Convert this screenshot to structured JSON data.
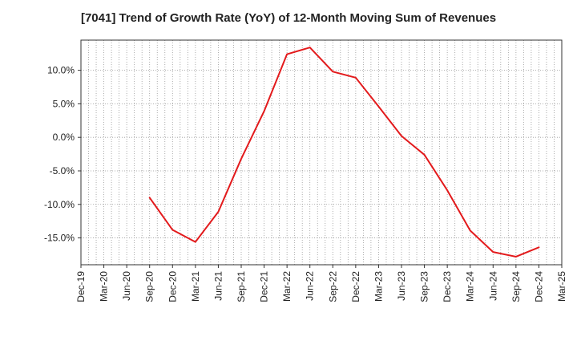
{
  "chart_data": {
    "type": "line",
    "title": "[7041]  Trend of Growth Rate (YoY) of 12-Month Moving Sum of Revenues",
    "xlabel": "",
    "ylabel": "",
    "categories": [
      "Dec-19",
      "Mar-20",
      "Jun-20",
      "Sep-20",
      "Dec-20",
      "Mar-21",
      "Jun-21",
      "Sep-21",
      "Dec-21",
      "Mar-22",
      "Jun-22",
      "Sep-22",
      "Dec-22",
      "Mar-23",
      "Jun-23",
      "Sep-23",
      "Dec-23",
      "Mar-24",
      "Jun-24",
      "Sep-24",
      "Dec-24",
      "Mar-25"
    ],
    "series": [
      {
        "color": "#e31a1c",
        "values": [
          null,
          null,
          null,
          -9.0,
          -13.8,
          -15.6,
          -11.1,
          -3.2,
          3.9,
          12.4,
          13.4,
          9.8,
          8.9,
          4.6,
          0.2,
          -2.6,
          -7.9,
          -13.9,
          -17.1,
          -17.8,
          -16.4,
          null
        ]
      }
    ],
    "ylim": [
      -19,
      14.5
    ],
    "yticks": [
      10,
      5,
      0,
      -5,
      -10,
      -15
    ],
    "ytick_labels": [
      "10.0%",
      "5.0%",
      "0.0%",
      "-5.0%",
      "-10.0%",
      "-15.0%"
    ],
    "grid": true
  }
}
